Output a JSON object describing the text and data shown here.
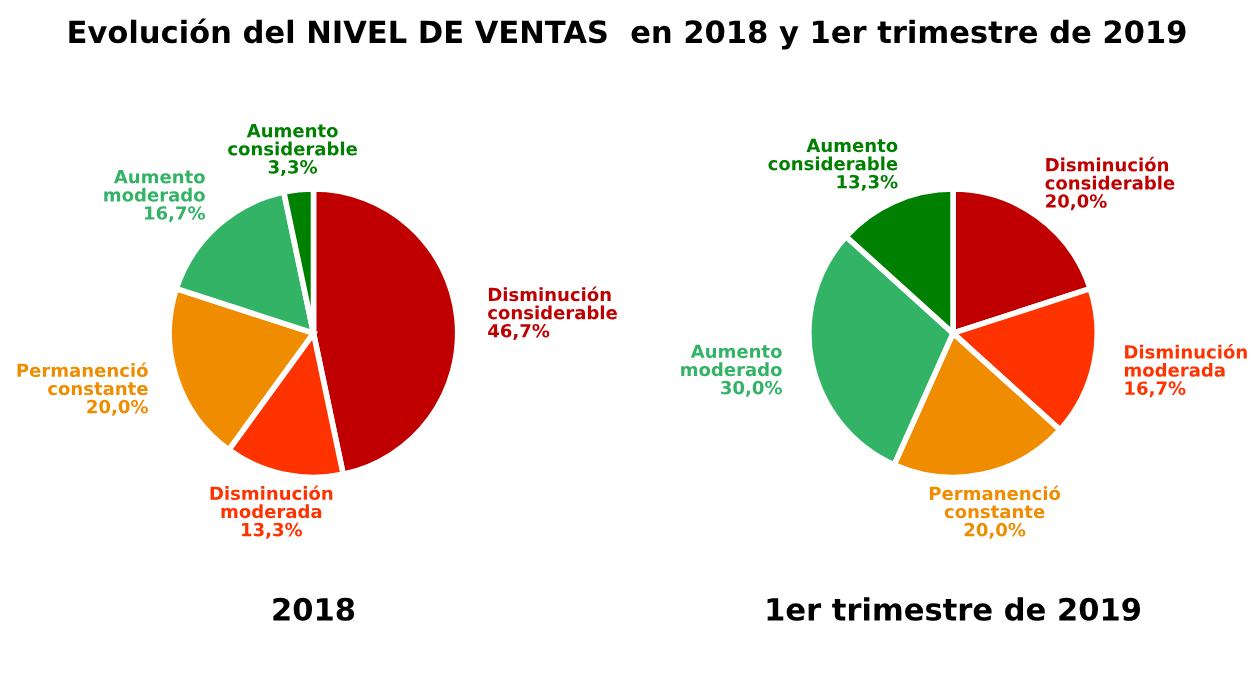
{
  "chart_data": [
    {
      "type": "pie",
      "title": "Evolución del NIVEL DE VENTAS  en 2018 y 1er trimestre de 2019",
      "xlabel": "2018",
      "categories": [
        "Disminución considerable",
        "Disminución moderada",
        "Permanenció constante",
        "Aumento moderado",
        "Aumento considerable"
      ],
      "values": [
        46.7,
        13.3,
        20.0,
        16.7,
        3.3
      ],
      "value_labels": [
        "46,7%",
        "13,3%",
        "20,0%",
        "16,7%",
        "3,3%"
      ],
      "colors": [
        "#c00000",
        "#ff3300",
        "#f08c00",
        "#33b366",
        "#008000"
      ]
    },
    {
      "type": "pie",
      "xlabel": "1er trimestre de 2019",
      "categories": [
        "Disminución considerable",
        "Disminución moderada",
        "Permanenció constante",
        "Aumento moderado",
        "Aumento considerable"
      ],
      "values": [
        20.0,
        16.7,
        20.0,
        30.0,
        13.3
      ],
      "value_labels": [
        "20,0%",
        "16,7%",
        "20,0%",
        "30,0%",
        "13,3%"
      ],
      "colors": [
        "#c00000",
        "#ff3300",
        "#f08c00",
        "#33b366",
        "#008000"
      ]
    }
  ]
}
